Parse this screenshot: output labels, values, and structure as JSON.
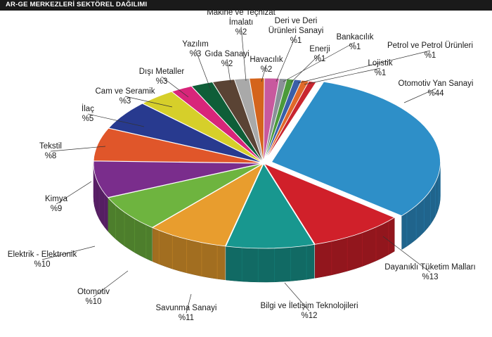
{
  "chart_data": {
    "type": "pie",
    "title": "AR-GE MERKEZLERİ SEKTÖREL DAĞILIMI",
    "value_prefix": "%",
    "slices": [
      {
        "name": "Otomotiv Yan Sanayi",
        "value": 44,
        "color": "#2e8fc8"
      },
      {
        "name": "Dayanıklı Tüketim Malları",
        "value": 13,
        "color": "#d0202a"
      },
      {
        "name": "Bilgi ve İletişim Teknolojileri",
        "value": 12,
        "color": "#18978f"
      },
      {
        "name": "Savunma Sanayi",
        "value": 11,
        "color": "#e89d2e"
      },
      {
        "name": "Otomotiv",
        "value": 10,
        "color": "#6eb43f"
      },
      {
        "name": "Elektrik - Elektronik",
        "value": 10,
        "color": "#7a2d8c"
      },
      {
        "name": "Kimya",
        "value": 9,
        "color": "#e0562a"
      },
      {
        "name": "Tekstil",
        "value": 8,
        "color": "#283a8f"
      },
      {
        "name": "İlaç",
        "value": 5,
        "color": "#d6cf2a"
      },
      {
        "name": "Cam ve Seramik",
        "value": 3,
        "color": "#d8257a"
      },
      {
        "name": "Dışı Metaller",
        "value": 3,
        "color": "#0f5e38"
      },
      {
        "name": "Yazılım",
        "value": 3,
        "color": "#5a4334"
      },
      {
        "name": "Gıda Sanayi",
        "value": 2,
        "color": "#a9a9a9"
      },
      {
        "name": "Makine ve Teçhizat İmalatı",
        "value": 2,
        "color": "#d4641c"
      },
      {
        "name": "Havacılık",
        "value": 2,
        "color": "#c8599e"
      },
      {
        "name": "Deri ve Deri Ürünleri Sanayi",
        "value": 1,
        "color": "#8a9098"
      },
      {
        "name": "Bankacılık",
        "value": 1,
        "color": "#4b9a3a"
      },
      {
        "name": "Enerji",
        "value": 1,
        "color": "#3a5fa8"
      },
      {
        "name": "Petrol ve Petrol Ürünleri",
        "value": 1,
        "color": "#e0692a"
      },
      {
        "name": "Lojistik",
        "value": 1,
        "color": "#c9252f"
      }
    ]
  }
}
